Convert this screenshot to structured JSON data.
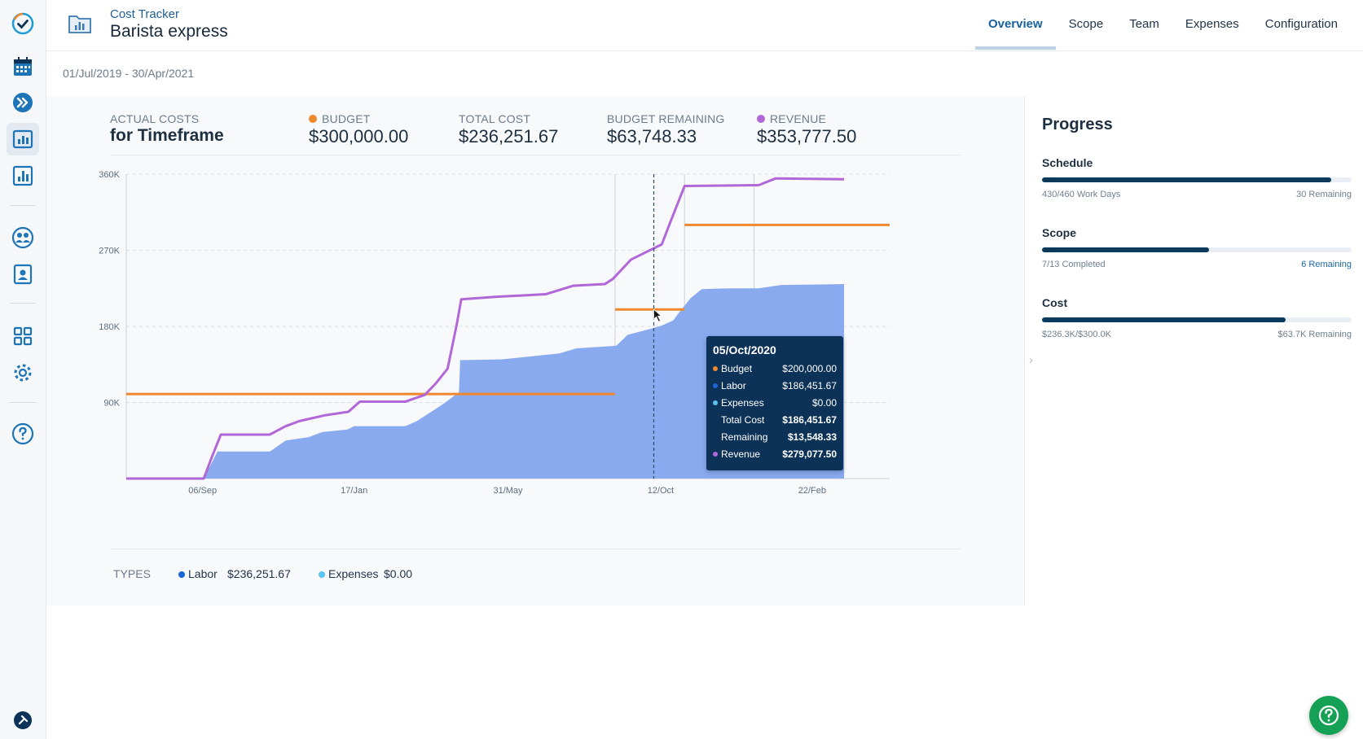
{
  "header": {
    "app_name": "Cost Tracker",
    "project_title": "Barista express",
    "tabs": [
      {
        "label": "Overview",
        "active": true
      },
      {
        "label": "Scope",
        "active": false
      },
      {
        "label": "Team",
        "active": false
      },
      {
        "label": "Expenses",
        "active": false
      },
      {
        "label": "Configuration",
        "active": false
      }
    ]
  },
  "date_range": "01/Jul/2019 - 30/Apr/2021",
  "stats": {
    "actual_label": "ACTUAL COSTS",
    "actual_sub": "for Timeframe",
    "budget_label": "BUDGET",
    "budget_value": "$300,000.00",
    "total_label": "TOTAL COST",
    "total_value": "$236,251.67",
    "remaining_label": "BUDGET REMAINING",
    "remaining_value": "$63,748.33",
    "revenue_label": "REVENUE",
    "revenue_value": "$353,777.50"
  },
  "colors": {
    "budget": "#f0892d",
    "revenue": "#b167d8",
    "labor": "#8aaaf0",
    "labor_dot": "#1967d2",
    "expenses": "#58c4f0",
    "accent": "#17619e",
    "progress_fill": "#0c3a5c",
    "help_green": "#15a155"
  },
  "chart_data": {
    "type": "area",
    "y_ticks": [
      "360K",
      "270K",
      "180K",
      "90K"
    ],
    "ylim": [
      0,
      360000
    ],
    "x_ticks": [
      "06/Sep",
      "17/Jan",
      "31/May",
      "12/Oct",
      "22/Feb"
    ],
    "x_tick_days": [
      67,
      200,
      335,
      469,
      602
    ],
    "xlim_days": [
      0,
      670
    ],
    "series": [
      {
        "name": "Labor",
        "type": "area",
        "points": [
          [
            0,
            0
          ],
          [
            68,
            0
          ],
          [
            80,
            32000
          ],
          [
            126,
            32000
          ],
          [
            140,
            45000
          ],
          [
            160,
            49000
          ],
          [
            172,
            55000
          ],
          [
            194,
            58000
          ],
          [
            200,
            62000
          ],
          [
            245,
            62000
          ],
          [
            255,
            68000
          ],
          [
            270,
            81000
          ],
          [
            280,
            90000
          ],
          [
            292,
            102000
          ],
          [
            293,
            140000
          ],
          [
            330,
            141000
          ],
          [
            380,
            148000
          ],
          [
            395,
            154000
          ],
          [
            430,
            157000
          ],
          [
            440,
            170000
          ],
          [
            460,
            177000
          ],
          [
            470,
            181000
          ],
          [
            480,
            187000
          ],
          [
            485,
            196000
          ],
          [
            495,
            213000
          ],
          [
            505,
            224000
          ],
          [
            530,
            225000
          ],
          [
            555,
            225000
          ],
          [
            575,
            229000
          ],
          [
            630,
            230000
          ],
          [
            630,
            0
          ]
        ]
      },
      {
        "name": "Budget",
        "type": "step",
        "segments": [
          [
            [
              0,
              100000
            ],
            [
              429,
              100000
            ]
          ],
          [
            [
              429,
              200000
            ],
            [
              490,
              200000
            ]
          ],
          [
            [
              490,
              300000
            ],
            [
              670,
              300000
            ]
          ]
        ]
      },
      {
        "name": "Revenue",
        "type": "line",
        "points": [
          [
            0,
            0
          ],
          [
            68,
            0
          ],
          [
            75,
            25000
          ],
          [
            83,
            52000
          ],
          [
            126,
            52000
          ],
          [
            140,
            62000
          ],
          [
            152,
            68000
          ],
          [
            175,
            75000
          ],
          [
            195,
            79000
          ],
          [
            205,
            91000
          ],
          [
            245,
            91000
          ],
          [
            262,
            99000
          ],
          [
            272,
            113000
          ],
          [
            282,
            130000
          ],
          [
            290,
            182000
          ],
          [
            294,
            212000
          ],
          [
            325,
            215000
          ],
          [
            368,
            218000
          ],
          [
            392,
            228000
          ],
          [
            420,
            230000
          ],
          [
            427,
            236000
          ],
          [
            443,
            259000
          ],
          [
            470,
            277000
          ],
          [
            478,
            305000
          ],
          [
            490,
            346000
          ],
          [
            555,
            347000
          ],
          [
            570,
            355000
          ],
          [
            630,
            354000
          ]
        ]
      }
    ],
    "hover_date_day": 463,
    "vertical_guides_days": [
      429,
      490,
      551
    ]
  },
  "tooltip": {
    "date": "05/Oct/2020",
    "rows": [
      {
        "label": "Budget",
        "value": "$200,000.00",
        "dot": "#f0892d"
      },
      {
        "label": "Labor",
        "value": "$186,451.67",
        "dot": "#1967d2"
      },
      {
        "label": "Expenses",
        "value": "$0.00",
        "dot": "#58c4f0"
      },
      {
        "label": "Total Cost",
        "value": "$186,451.67",
        "dot": ""
      },
      {
        "label": "Remaining",
        "value": "$13,548.33",
        "dot": ""
      },
      {
        "label": "Revenue",
        "value": "$279,077.50",
        "dot": "#b167d8"
      }
    ]
  },
  "types": {
    "label": "TYPES",
    "labor_label": "Labor",
    "labor_value": "$236,251.67",
    "expenses_label": "Expenses",
    "expenses_value": "$0.00"
  },
  "progress": {
    "title": "Progress",
    "schedule": {
      "title": "Schedule",
      "left": "430/460 Work Days",
      "right": "30 Remaining",
      "fraction": 0.935
    },
    "scope": {
      "title": "Scope",
      "left": "7/13 Completed",
      "right": "6 Remaining",
      "fraction": 0.54
    },
    "cost": {
      "title": "Cost",
      "left": "$236.3K/$300.0K",
      "right": "$63.7K Remaining",
      "fraction": 0.788
    }
  }
}
